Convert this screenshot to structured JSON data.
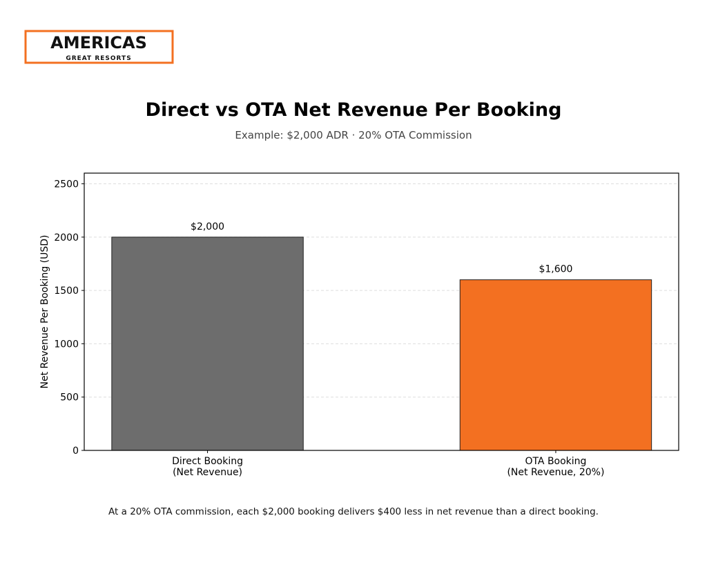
{
  "logo": {
    "main": "AMERICAS",
    "sub": "GREAT RESORTS",
    "color": "#F37021"
  },
  "footnote": "At a 20% OTA commission, each $2,000 booking delivers $400 less in net revenue than a direct booking.",
  "chart_data": {
    "type": "bar",
    "title": "Direct vs OTA Net Revenue Per Booking",
    "subtitle": "Example: $2,000 ADR · 20% OTA Commission",
    "xlabel": "",
    "ylabel": "Net Revenue Per Booking (USD)",
    "categories": [
      [
        "Direct Booking",
        "(Net Revenue)"
      ],
      [
        "OTA Booking",
        "(Net Revenue, 20%)"
      ]
    ],
    "values": [
      2000,
      1600
    ],
    "data_labels": [
      "$2,000",
      "$1,600"
    ],
    "colors": [
      "#6D6D6D",
      "#F37021"
    ],
    "ylim": [
      0,
      2600
    ],
    "yticks": [
      0,
      500,
      1000,
      1500,
      2000,
      2500
    ],
    "grid": "y-dashed",
    "legend": "none"
  }
}
